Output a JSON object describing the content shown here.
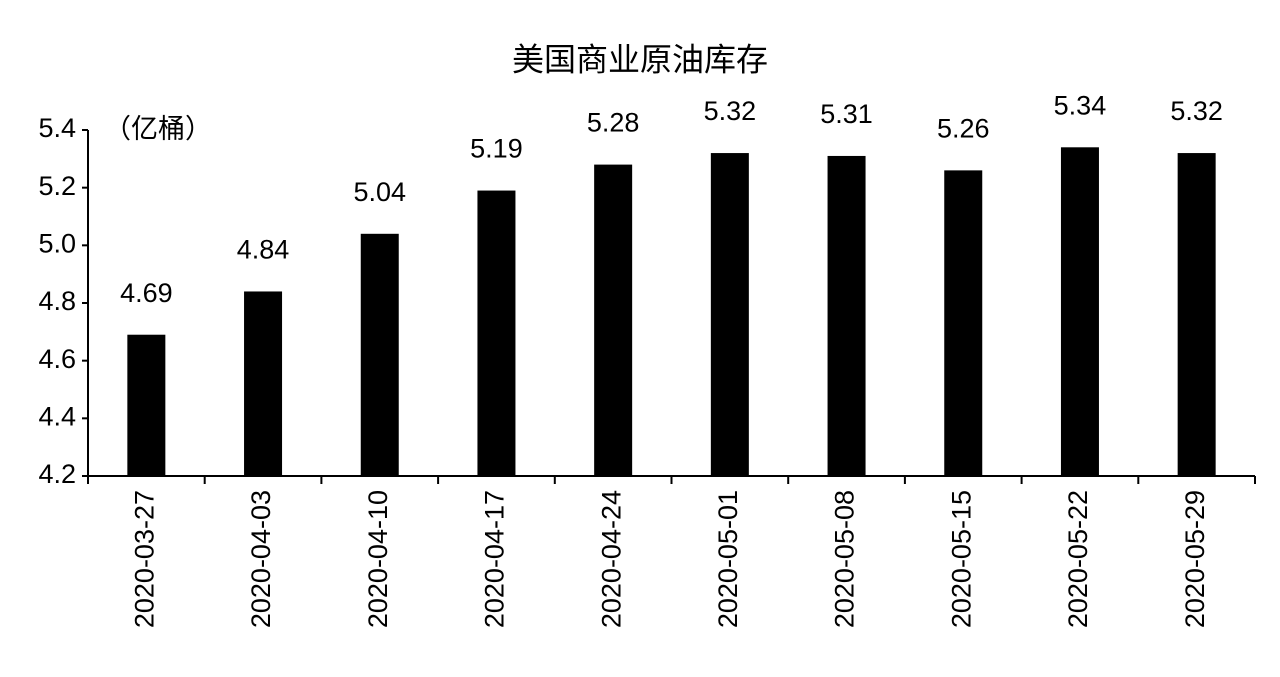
{
  "chart_data": {
    "type": "bar",
    "title": "美国商业原油库存",
    "unit_label": "（亿桶）",
    "categories": [
      "2020-03-27",
      "2020-04-03",
      "2020-04-10",
      "2020-04-17",
      "2020-04-24",
      "2020-05-01",
      "2020-05-08",
      "2020-05-15",
      "2020-05-22",
      "2020-05-29"
    ],
    "values": [
      4.69,
      4.84,
      5.04,
      5.19,
      5.28,
      5.32,
      5.31,
      5.26,
      5.34,
      5.32
    ],
    "color": "#000000",
    "ylim": [
      4.2,
      5.4
    ],
    "yticks": [
      4.2,
      4.4,
      4.6,
      4.8,
      {
        "value": 5,
        "label": "5.0"
      },
      5.2,
      5.4
    ],
    "grid": false
  }
}
